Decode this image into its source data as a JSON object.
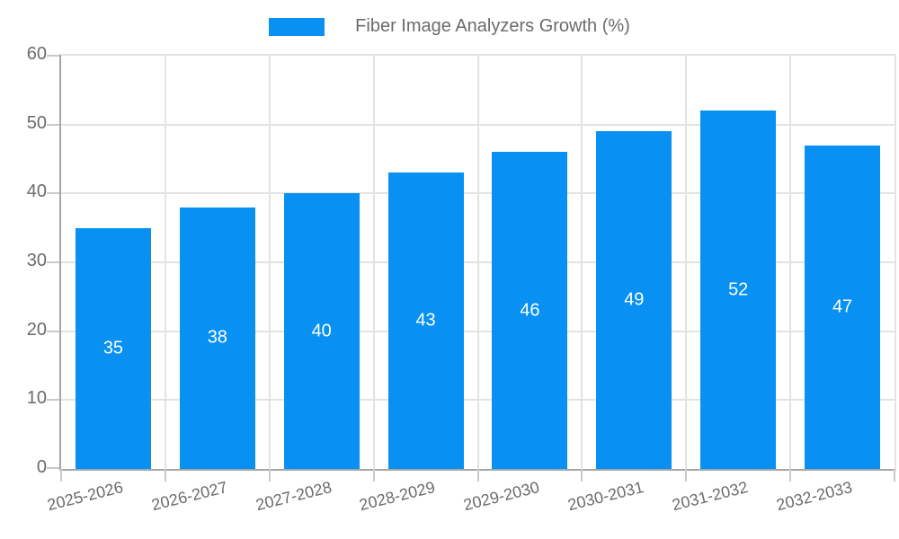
{
  "legend": {
    "label": "Fiber Image Analyzers Growth (%)"
  },
  "chart_data": {
    "type": "bar",
    "title": "Fiber Image Analyzers Growth (%)",
    "categories": [
      "2025-2026",
      "2026-2027",
      "2027-2028",
      "2028-2029",
      "2029-2030",
      "2030-2031",
      "2031-2032",
      "2032-2033"
    ],
    "values": [
      35,
      38,
      40,
      43,
      46,
      49,
      52,
      47
    ],
    "xlabel": "",
    "ylabel": "",
    "ylim": [
      0,
      60
    ],
    "yticks": [
      0,
      10,
      20,
      30,
      40,
      50,
      60
    ],
    "grid": true,
    "legend_position": "top",
    "value_labels": "inside-center-white"
  },
  "colors": {
    "bar": "#0890f2",
    "grid": "#e3e3e3",
    "axis": "#a6a6a6",
    "tick": "#c9c9c9",
    "text": "#6b6b6b",
    "value_label": "#ffffff",
    "background": "#ffffff"
  }
}
